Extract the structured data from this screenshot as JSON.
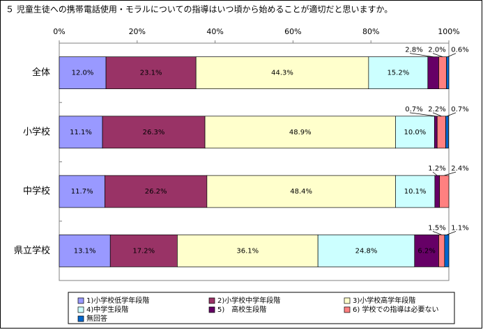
{
  "chart_data": {
    "type": "stacked-bar-horizontal",
    "title": "５ 児童生徒への携帯電話使用・モラルについての指導はいつ頃から始めることが適切だと思いますか。",
    "categories": [
      "全体",
      "小学校",
      "中学校",
      "県立学校"
    ],
    "xlim": [
      0,
      100
    ],
    "xticks": [
      {
        "value": 0,
        "label": "0%"
      },
      {
        "value": 20,
        "label": "20%"
      },
      {
        "value": 40,
        "label": "40%"
      },
      {
        "value": 60,
        "label": "60%"
      },
      {
        "value": 80,
        "label": "80%"
      },
      {
        "value": 100,
        "label": "100%"
      }
    ],
    "series": [
      {
        "name": "1)小学校低学年段階",
        "color": "#9999ff",
        "values": [
          12.0,
          11.1,
          11.7,
          13.1
        ],
        "value_labels": [
          "12.0%",
          "11.1%",
          "11.7%",
          "13.1%"
        ]
      },
      {
        "name": "2)小学校中学年段階",
        "color": "#993366",
        "values": [
          23.1,
          26.3,
          26.2,
          17.2
        ],
        "value_labels": [
          "23.1%",
          "26.3%",
          "26.2%",
          "17.2%"
        ]
      },
      {
        "name": "3)小学校高学年段階",
        "color": "#ffffcc",
        "values": [
          44.3,
          48.9,
          48.4,
          36.1
        ],
        "value_labels": [
          "44.3%",
          "48.9%",
          "48.4%",
          "36.1%"
        ]
      },
      {
        "name": "4)中学生段階",
        "color": "#ccffff",
        "values": [
          15.2,
          10.0,
          10.1,
          24.8
        ],
        "value_labels": [
          "15.2%",
          "10.0%",
          "10.1%",
          "24.8%"
        ]
      },
      {
        "name": "5)　高校生段階",
        "color": "#660066",
        "values": [
          2.8,
          0.7,
          1.2,
          6.2
        ],
        "value_labels": [
          "2.8%",
          "0.7%",
          "1.2%",
          "6.2%"
        ]
      },
      {
        "name": "6) 学校での指導は必要ない",
        "color": "#ff8080",
        "values": [
          2.0,
          2.2,
          2.4,
          1.5
        ],
        "value_labels": [
          "2.0%",
          "2.2%",
          "2.4%",
          "1.5%"
        ]
      },
      {
        "name": "無回答",
        "color": "#0066cc",
        "values": [
          0.6,
          0.7,
          null,
          1.1
        ],
        "value_labels": [
          "0.6%",
          "0.7%",
          null,
          "1.1%"
        ]
      }
    ]
  }
}
